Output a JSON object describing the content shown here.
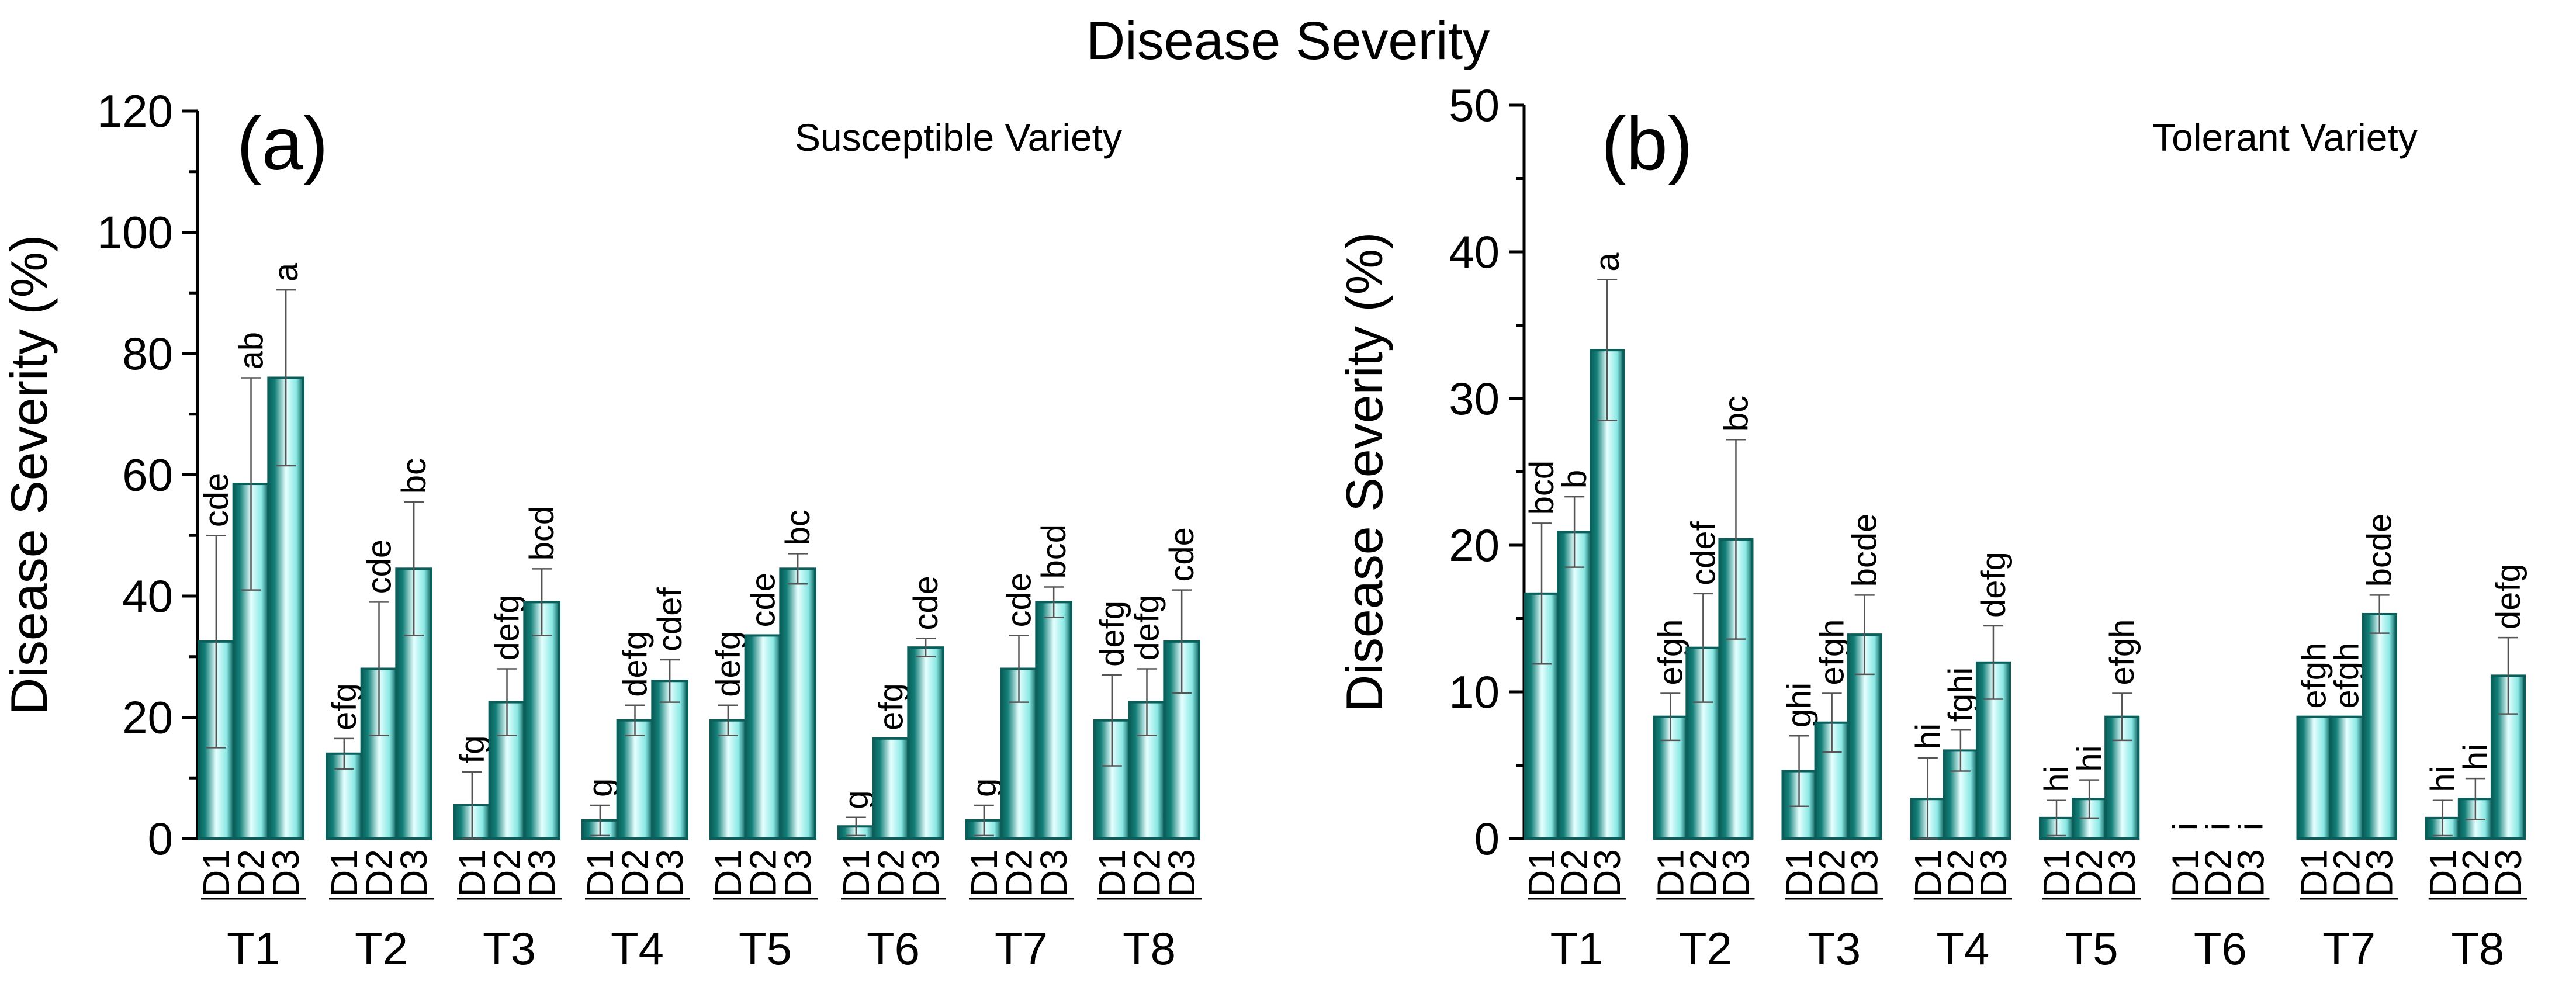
{
  "figure_title": "Disease Severity",
  "colors": {
    "bar_edge": "#0b5f5a",
    "bar_center": "#e6ffff",
    "bar_mid": "#8ae8e4",
    "bar_dark": "#137f78",
    "axis": "#000000",
    "errorbar": "#555555"
  },
  "chart_data": [
    {
      "type": "bar",
      "panel_label": "(a)",
      "title": "Susceptible Variety",
      "ylabel": "Disease Severity (%)",
      "xlabel": "",
      "ylim": [
        0,
        120
      ],
      "yticks": [
        0,
        20,
        40,
        60,
        80,
        100,
        120
      ],
      "yticklabels": [
        "0",
        "20",
        "40",
        "60",
        "80",
        "100",
        "120"
      ],
      "grid": false,
      "groups": [
        "T1",
        "T2",
        "T3",
        "T4",
        "T5",
        "T6",
        "T7",
        "T8"
      ],
      "subcategories": [
        "D1",
        "D2",
        "D3"
      ],
      "values": [
        [
          32.5,
          58.5,
          76
        ],
        [
          14,
          28,
          44.5
        ],
        [
          5.5,
          22.5,
          39
        ],
        [
          3,
          19.5,
          26
        ],
        [
          19.5,
          33.5,
          44.5
        ],
        [
          2,
          16.5,
          31.5
        ],
        [
          3,
          28,
          39
        ],
        [
          19.5,
          22.5,
          32.5
        ]
      ],
      "errors": [
        [
          17.5,
          17.5,
          14.5
        ],
        [
          2.5,
          11,
          11
        ],
        [
          5.5,
          5.5,
          5.5
        ],
        [
          2.5,
          2.5,
          3.5
        ],
        [
          2.5,
          0,
          2.5
        ],
        [
          1.5,
          0,
          1.5
        ],
        [
          2.5,
          5.5,
          2.5
        ],
        [
          7.5,
          5.5,
          8.5
        ]
      ],
      "letters": [
        [
          "cde",
          "ab",
          "a"
        ],
        [
          "efg",
          "cde",
          "bc"
        ],
        [
          "fg",
          "defg",
          "bcd"
        ],
        [
          "g",
          "defg",
          "cdef"
        ],
        [
          "defg",
          "cde",
          "bc"
        ],
        [
          "g",
          "efg",
          "cde"
        ],
        [
          "g",
          "cde",
          "bcd"
        ],
        [
          "defg",
          "defg",
          "cde"
        ]
      ]
    },
    {
      "type": "bar",
      "panel_label": "(b)",
      "title": "Tolerant Variety",
      "ylabel": "Disease Severity (%)",
      "xlabel": "",
      "ylim": [
        0,
        50
      ],
      "yticks": [
        0,
        10,
        20,
        30,
        40,
        50
      ],
      "yticklabels": [
        "0",
        "10",
        "20",
        "30",
        "40",
        "50"
      ],
      "grid": false,
      "groups": [
        "T1",
        "T2",
        "T3",
        "T4",
        "T5",
        "T6",
        "T7",
        "T8"
      ],
      "subcategories": [
        "D1",
        "D2",
        "D3"
      ],
      "values": [
        [
          16.7,
          20.9,
          33.3
        ],
        [
          8.3,
          13,
          20.4
        ],
        [
          4.6,
          7.9,
          13.9
        ],
        [
          2.7,
          6,
          12
        ],
        [
          1.4,
          2.7,
          8.3
        ],
        [
          0,
          0,
          0
        ],
        [
          8.3,
          8.3,
          15.3
        ],
        [
          1.4,
          2.7,
          11.1
        ]
      ],
      "errors": [
        [
          4.8,
          2.4,
          4.8
        ],
        [
          1.6,
          3.7,
          6.8
        ],
        [
          2.4,
          2,
          2.7
        ],
        [
          2.8,
          1.4,
          2.5
        ],
        [
          1.2,
          1.3,
          1.6
        ],
        [
          0,
          0,
          0
        ],
        [
          0,
          0,
          1.3
        ],
        [
          1.2,
          1.4,
          2.6
        ]
      ],
      "letters": [
        [
          "bcd",
          "b",
          "a"
        ],
        [
          "efgh",
          "cdef",
          "bc"
        ],
        [
          "ghi",
          "efgh",
          "bcde"
        ],
        [
          "hi",
          "fghi",
          "defg"
        ],
        [
          "hi",
          "hi",
          "efgh"
        ],
        [
          "i",
          "i",
          "i"
        ],
        [
          "efgh",
          "efgh",
          "bcde"
        ],
        [
          "hi",
          "hi",
          "defg"
        ]
      ]
    }
  ]
}
